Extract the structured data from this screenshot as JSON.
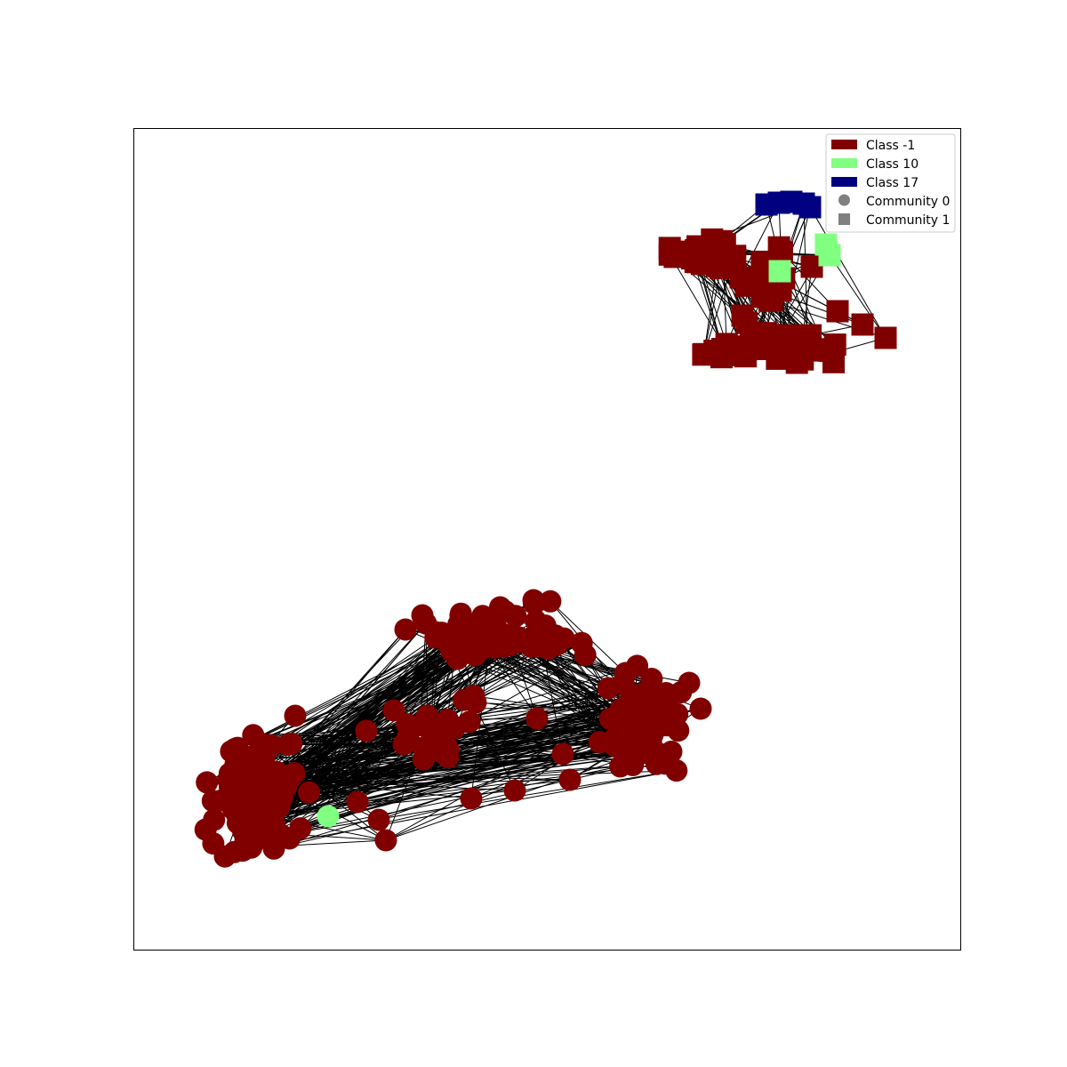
{
  "chart_data": {
    "type": "network-graph",
    "legend": {
      "placement": "upper-right",
      "entries": [
        {
          "label": "Class -1",
          "kind": "class",
          "color": "#800000"
        },
        {
          "label": "Class 10",
          "kind": "class",
          "color": "#80ff80"
        },
        {
          "label": "Class 17",
          "kind": "class",
          "color": "#000080"
        },
        {
          "label": "Community 0",
          "kind": "community",
          "marker": "circle",
          "color": "#808080"
        },
        {
          "label": "Community 1",
          "kind": "community",
          "marker": "square",
          "color": "#808080"
        }
      ]
    },
    "communities": [
      {
        "name": "Community 0",
        "marker": "circle",
        "cluster": "bottom-left",
        "classes_present": [
          "Class -1",
          "Class 10"
        ]
      },
      {
        "name": "Community 1",
        "marker": "square",
        "cluster": "top-right",
        "classes_present": [
          "Class -1",
          "Class 10",
          "Class 17"
        ]
      }
    ],
    "axes": {
      "ticks": false,
      "grid": false,
      "frame": true
    },
    "edge_color": "#000000"
  }
}
